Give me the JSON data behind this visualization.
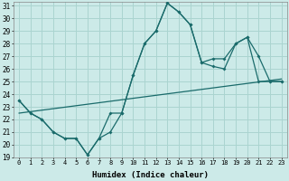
{
  "xlabel": "Humidex (Indice chaleur)",
  "background_color": "#cceae8",
  "grid_color": "#aad4d0",
  "line_color": "#1a6b6b",
  "x_min": 0,
  "x_max": 23,
  "y_min": 19,
  "y_max": 31,
  "line1_y": [
    23.5,
    22.5,
    22.0,
    21.0,
    20.5,
    20.5,
    19.2,
    20.5,
    21.0,
    22.5,
    25.5,
    28.0,
    29.0,
    31.2,
    30.5,
    29.5,
    26.5,
    26.2,
    26.0,
    28.0,
    28.5,
    27.0,
    25.0,
    25.0
  ],
  "line2_y": [
    23.5,
    22.5,
    22.0,
    21.0,
    20.5,
    20.5,
    19.2,
    20.5,
    22.5,
    22.5,
    25.5,
    28.0,
    29.0,
    31.2,
    30.5,
    29.5,
    26.5,
    26.8,
    26.8,
    28.0,
    28.5,
    25.0,
    25.0,
    25.0
  ],
  "trend_x": [
    0,
    23
  ],
  "trend_y": [
    22.5,
    25.2
  ],
  "tick_fontsize": 5,
  "label_fontsize": 6.5
}
